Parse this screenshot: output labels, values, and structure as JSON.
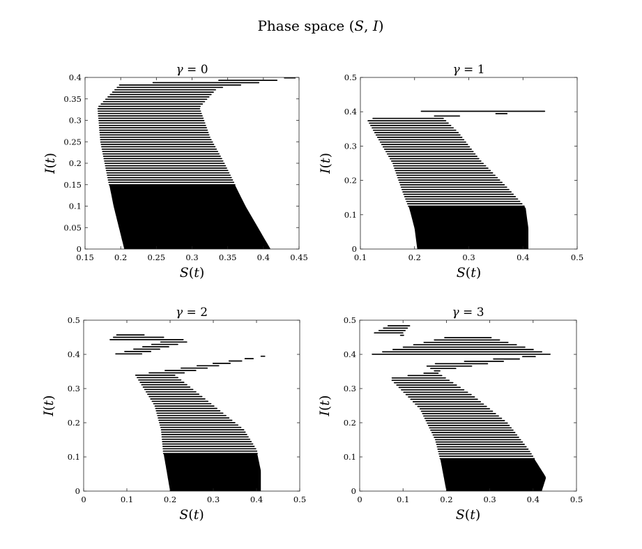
{
  "figure": {
    "title": "Phase space (S, I)"
  },
  "chart_data": [
    {
      "type": "line",
      "title": "γ = 0",
      "xlabel": "S(t)",
      "ylabel": "I(t)",
      "xlim": [
        0.15,
        0.45
      ],
      "ylim": [
        0,
        0.4
      ],
      "xticks": [
        "0.15",
        "0.2",
        "0.25",
        "0.3",
        "0.35",
        "0.4",
        "0.45"
      ],
      "yticks": [
        "0",
        "0.05",
        "0.1",
        "0.15",
        "0.2",
        "0.25",
        "0.3",
        "0.35",
        "0.4"
      ],
      "grid": false,
      "series": [
        {
          "style": "black horizontal strokes",
          "left_boundary": [
            [
              0.45,
              0.4
            ],
            [
              0.2,
              0.385
            ],
            [
              0.168,
              0.33
            ],
            [
              0.172,
              0.25
            ],
            [
              0.19,
              0.1
            ],
            [
              0.205,
              0.0
            ]
          ],
          "right_boundary": [
            [
              0.45,
              0.4
            ],
            [
              0.335,
              0.375
            ],
            [
              0.31,
              0.33
            ],
            [
              0.325,
              0.26
            ],
            [
              0.345,
              0.2
            ],
            [
              0.375,
              0.1
            ],
            [
              0.41,
              0.0
            ]
          ],
          "solid_fill_below_I": 0.15
        }
      ]
    },
    {
      "type": "line",
      "title": "γ = 1",
      "xlabel": "S(t)",
      "ylabel": "I(t)",
      "xlim": [
        0.1,
        0.5
      ],
      "ylim": [
        0,
        0.5
      ],
      "xticks": [
        "0.1",
        "0.2",
        "0.3",
        "0.4",
        "0.5"
      ],
      "yticks": [
        "0",
        "0.1",
        "0.2",
        "0.3",
        "0.4",
        "0.5"
      ],
      "grid": false,
      "series": [
        {
          "style": "black horizontal strokes",
          "left_boundary": [
            [
              0.44,
              0.4
            ],
            [
              0.12,
              0.402
            ],
            [
              0.112,
              0.38
            ],
            [
              0.13,
              0.33
            ],
            [
              0.16,
              0.25
            ],
            [
              0.18,
              0.16
            ],
            [
              0.19,
              0.12
            ],
            [
              0.2,
              0.06
            ],
            [
              0.205,
              0.0
            ]
          ],
          "right_boundary": [
            [
              0.44,
              0.4
            ],
            [
              0.25,
              0.385
            ],
            [
              0.28,
              0.34
            ],
            [
              0.32,
              0.26
            ],
            [
              0.37,
              0.18
            ],
            [
              0.405,
              0.12
            ],
            [
              0.41,
              0.06
            ],
            [
              0.41,
              0.0
            ]
          ],
          "solid_fill_below_I": 0.125
        }
      ]
    },
    {
      "type": "line",
      "title": "γ = 2",
      "xlabel": "S(t)",
      "ylabel": "I(t)",
      "xlim": [
        0,
        0.5
      ],
      "ylim": [
        0,
        0.5
      ],
      "xticks": [
        "0",
        "0.1",
        "0.2",
        "0.3",
        "0.4",
        "0.5"
      ],
      "yticks": [
        "0",
        "0.1",
        "0.2",
        "0.3",
        "0.4",
        "0.5"
      ],
      "grid": false,
      "series": [
        {
          "style": "black horizontal strokes",
          "left_boundary": [
            [
              0.44,
              0.4
            ],
            [
              0.19,
              0.44
            ],
            [
              0.08,
              0.46
            ],
            [
              0.058,
              0.44
            ],
            [
              0.07,
              0.4
            ],
            [
              0.12,
              0.34
            ],
            [
              0.165,
              0.25
            ],
            [
              0.18,
              0.18
            ],
            [
              0.185,
              0.11
            ],
            [
              0.2,
              0.0
            ]
          ],
          "right_boundary": [
            [
              0.44,
              0.4
            ],
            [
              0.25,
              0.44
            ],
            [
              0.12,
              0.46
            ],
            [
              0.13,
              0.4
            ],
            [
              0.21,
              0.34
            ],
            [
              0.3,
              0.25
            ],
            [
              0.37,
              0.18
            ],
            [
              0.4,
              0.12
            ],
            [
              0.41,
              0.06
            ],
            [
              0.41,
              0.0
            ]
          ],
          "solid_fill_below_I": 0.11
        }
      ]
    },
    {
      "type": "line",
      "title": "γ = 3",
      "xlabel": "S(t)",
      "ylabel": "I(t)",
      "xlim": [
        0,
        0.5
      ],
      "ylim": [
        0,
        0.5
      ],
      "xticks": [
        "0",
        "0.1",
        "0.2",
        "0.3",
        "0.4",
        "0.5"
      ],
      "yticks": [
        "0",
        "0.1",
        "0.2",
        "0.3",
        "0.4",
        "0.5"
      ],
      "grid": false,
      "series": [
        {
          "style": "black horizontal strokes",
          "left_boundary": [
            [
              0.44,
              0.4
            ],
            [
              0.2,
              0.45
            ],
            [
              0.075,
              0.49
            ],
            [
              0.03,
              0.46
            ],
            [
              0.028,
              0.4
            ],
            [
              0.07,
              0.33
            ],
            [
              0.14,
              0.24
            ],
            [
              0.175,
              0.15
            ],
            [
              0.185,
              0.1
            ],
            [
              0.2,
              0.0
            ]
          ],
          "right_boundary": [
            [
              0.44,
              0.4
            ],
            [
              0.3,
              0.45
            ],
            [
              0.12,
              0.49
            ],
            [
              0.09,
              0.45
            ],
            [
              0.15,
              0.37
            ],
            [
              0.26,
              0.28
            ],
            [
              0.34,
              0.2
            ],
            [
              0.39,
              0.12
            ],
            [
              0.43,
              0.04
            ],
            [
              0.42,
              0.0
            ]
          ],
          "solid_fill_below_I": 0.095
        }
      ]
    }
  ]
}
